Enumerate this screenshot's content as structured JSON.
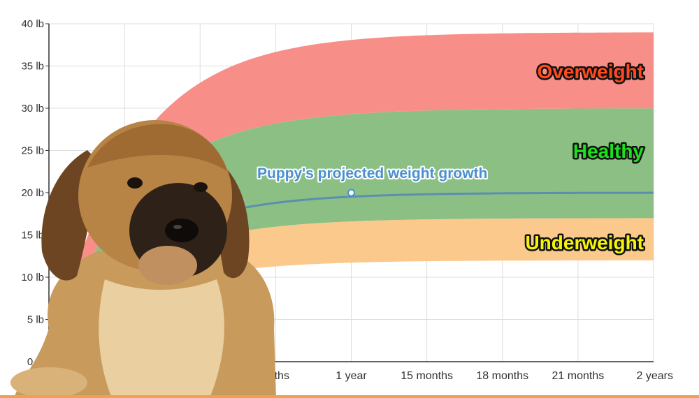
{
  "chart_data": {
    "type": "area",
    "x_tick_labels": [
      "",
      "",
      "",
      "onths",
      "1 year",
      "15 months",
      "18 months",
      "21 months",
      "2 years"
    ],
    "y_tick_labels": [
      "0 lb",
      "5 lb",
      "10 lb",
      "15 lb",
      "20 lb",
      "25 lb",
      "30 lb",
      "35 lb",
      "40 lb"
    ],
    "x_range_months": [
      0,
      24
    ],
    "ylim": [
      0,
      40
    ],
    "grid": true,
    "zones": [
      {
        "name": "Underweight",
        "lower_lb": 12,
        "upper_lb": 17,
        "fill": "#fcc98d",
        "label_color": "#f4f40a"
      },
      {
        "name": "Healthy",
        "lower_lb": 17,
        "upper_lb": 30,
        "fill": "#8cbf84",
        "label_color": "#1ee01e"
      },
      {
        "name": "Overweight",
        "lower_lb": 30,
        "upper_lb": 39,
        "fill": "#f78f88",
        "label_color": "#ff4a20"
      }
    ],
    "projection": {
      "label": "Puppy's projected weight growth",
      "color": "#4a90d0",
      "adult_weight_lb": 20,
      "marker_month": 12,
      "marker_weight_lb": 20
    }
  },
  "image": {
    "subject": "puppy-photo"
  },
  "colors": {
    "grid": "#dddddd",
    "axis": "#333333",
    "bottom_bar": "#f0a050"
  }
}
